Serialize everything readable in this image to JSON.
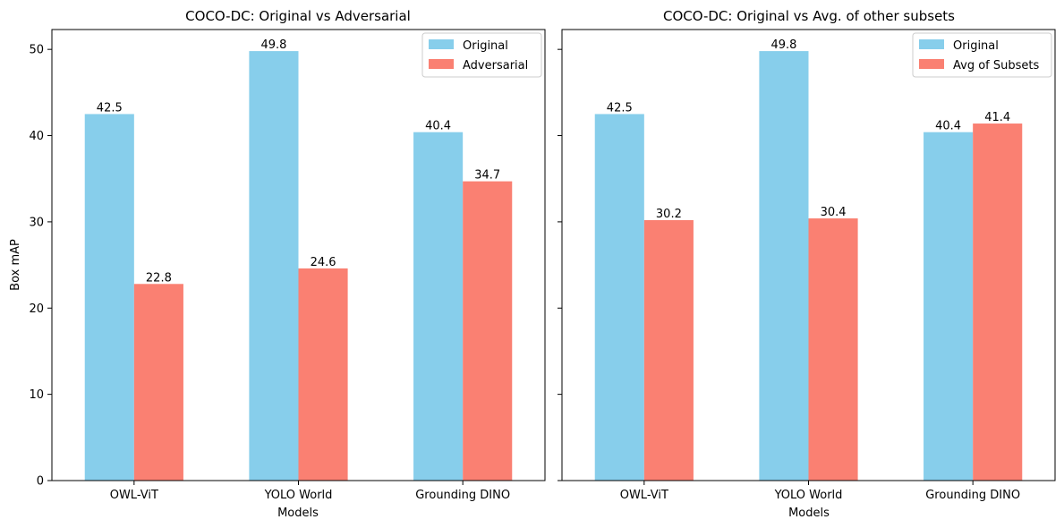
{
  "chart_data": [
    {
      "type": "bar",
      "title": "COCO-DC: Original vs Adversarial",
      "xlabel": "Models",
      "ylabel": "Box mAP",
      "categories": [
        "OWL-ViT",
        "YOLO World",
        "Grounding DINO"
      ],
      "series": [
        {
          "name": "Original",
          "color": "#87CEEB",
          "values": [
            42.5,
            49.8,
            40.4
          ]
        },
        {
          "name": "Adversarial",
          "color": "#FA8072",
          "values": [
            22.8,
            24.6,
            34.7
          ]
        }
      ],
      "ylim": [
        0,
        52.3
      ],
      "yticks": [
        0,
        10,
        20,
        30,
        40,
        50
      ],
      "legend": "top-right"
    },
    {
      "type": "bar",
      "title": "COCO-DC: Original vs Avg. of other subsets",
      "xlabel": "Models",
      "ylabel": "",
      "categories": [
        "OWL-ViT",
        "YOLO World",
        "Grounding DINO"
      ],
      "series": [
        {
          "name": "Original",
          "color": "#87CEEB",
          "values": [
            42.5,
            49.8,
            40.4
          ]
        },
        {
          "name": "Avg of Subsets",
          "color": "#FA8072",
          "values": [
            30.2,
            30.4,
            41.4
          ]
        }
      ],
      "ylim": [
        0,
        52.3
      ],
      "yticks": [
        0,
        10,
        20,
        30,
        40,
        50
      ],
      "legend": "top-right"
    }
  ]
}
